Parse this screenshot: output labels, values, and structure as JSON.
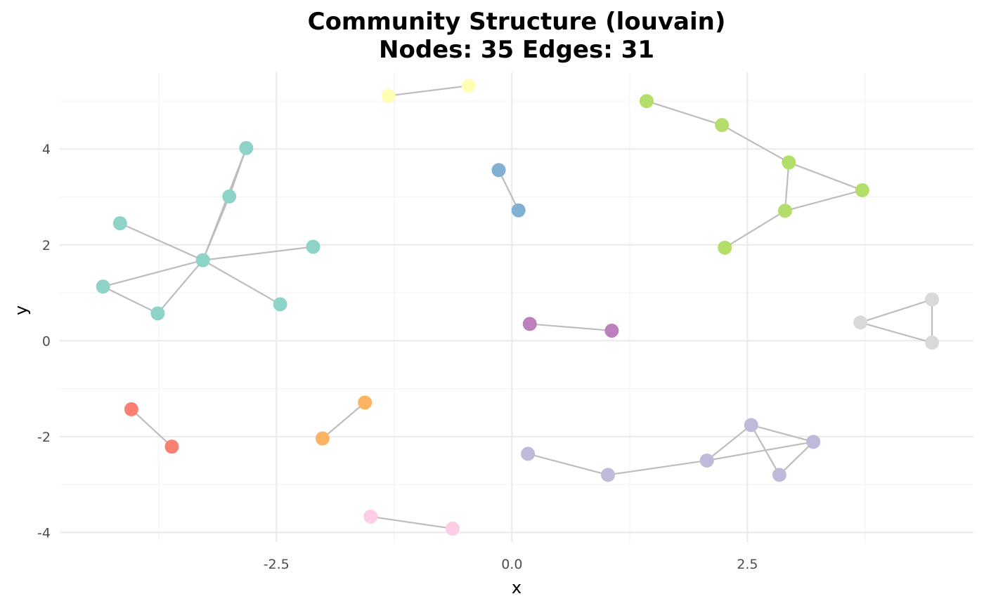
{
  "chart_data": {
    "type": "scatter",
    "title_line1": "Community Structure (louvain)",
    "title_line2": "Nodes: 35 Edges: 31",
    "xlabel": "x",
    "ylabel": "y",
    "xlim": [
      -4.8,
      4.9
    ],
    "ylim": [
      -4.2,
      5.6
    ],
    "x_ticks": [
      -2.5,
      0.0,
      2.5
    ],
    "x_tick_labels": [
      "-2.5",
      "0.0",
      "2.5"
    ],
    "y_ticks": [
      -4,
      -2,
      0,
      2,
      4
    ],
    "y_tick_labels": [
      "-4",
      "-2",
      "0",
      "2",
      "4"
    ],
    "grid": true,
    "legend": "none",
    "community_colors": [
      "#8dd3c7",
      "#ffffb3",
      "#80b1d3",
      "#b3de69",
      "#bc80bd",
      "#d9d9d9",
      "#fb8072",
      "#fdb462",
      "#bebada",
      "#fccde5"
    ],
    "nodes": [
      {
        "id": 1,
        "x": -3.28,
        "y": 1.68,
        "community": 0
      },
      {
        "id": 2,
        "x": -2.82,
        "y": 4.02,
        "community": 0
      },
      {
        "id": 3,
        "x": -3.0,
        "y": 3.01,
        "community": 0
      },
      {
        "id": 4,
        "x": -4.16,
        "y": 2.45,
        "community": 0
      },
      {
        "id": 5,
        "x": -2.11,
        "y": 1.96,
        "community": 0
      },
      {
        "id": 6,
        "x": -4.34,
        "y": 1.13,
        "community": 0
      },
      {
        "id": 7,
        "x": -3.76,
        "y": 0.57,
        "community": 0
      },
      {
        "id": 8,
        "x": -2.46,
        "y": 0.76,
        "community": 0
      },
      {
        "id": 9,
        "x": -1.31,
        "y": 5.11,
        "community": 1
      },
      {
        "id": 10,
        "x": -0.46,
        "y": 5.32,
        "community": 1
      },
      {
        "id": 11,
        "x": -0.14,
        "y": 3.56,
        "community": 2
      },
      {
        "id": 12,
        "x": 0.07,
        "y": 2.72,
        "community": 2
      },
      {
        "id": 13,
        "x": 1.43,
        "y": 5.0,
        "community": 3
      },
      {
        "id": 14,
        "x": 2.23,
        "y": 4.5,
        "community": 3
      },
      {
        "id": 15,
        "x": 2.94,
        "y": 3.72,
        "community": 3
      },
      {
        "id": 16,
        "x": 3.72,
        "y": 3.14,
        "community": 3
      },
      {
        "id": 17,
        "x": 2.9,
        "y": 2.71,
        "community": 3
      },
      {
        "id": 18,
        "x": 2.26,
        "y": 1.94,
        "community": 3
      },
      {
        "id": 19,
        "x": 0.19,
        "y": 0.35,
        "community": 4
      },
      {
        "id": 20,
        "x": 1.06,
        "y": 0.21,
        "community": 4
      },
      {
        "id": 21,
        "x": 3.7,
        "y": 0.38,
        "community": 5
      },
      {
        "id": 22,
        "x": 4.46,
        "y": 0.86,
        "community": 5
      },
      {
        "id": 23,
        "x": 4.46,
        "y": -0.04,
        "community": 5
      },
      {
        "id": 24,
        "x": -4.04,
        "y": -1.43,
        "community": 6
      },
      {
        "id": 25,
        "x": -3.61,
        "y": -2.21,
        "community": 6
      },
      {
        "id": 26,
        "x": -1.56,
        "y": -1.29,
        "community": 7
      },
      {
        "id": 27,
        "x": -2.01,
        "y": -2.04,
        "community": 7
      },
      {
        "id": 28,
        "x": 0.17,
        "y": -2.36,
        "community": 8
      },
      {
        "id": 29,
        "x": 1.02,
        "y": -2.8,
        "community": 8
      },
      {
        "id": 30,
        "x": 2.07,
        "y": -2.5,
        "community": 8
      },
      {
        "id": 31,
        "x": 2.54,
        "y": -1.76,
        "community": 8
      },
      {
        "id": 32,
        "x": 3.2,
        "y": -2.11,
        "community": 8
      },
      {
        "id": 33,
        "x": 2.84,
        "y": -2.8,
        "community": 8
      },
      {
        "id": 34,
        "x": -1.5,
        "y": -3.67,
        "community": 9
      },
      {
        "id": 35,
        "x": -0.63,
        "y": -3.92,
        "community": 9
      }
    ],
    "edges": [
      [
        1,
        2
      ],
      [
        1,
        3
      ],
      [
        1,
        4
      ],
      [
        1,
        5
      ],
      [
        1,
        6
      ],
      [
        1,
        7
      ],
      [
        1,
        8
      ],
      [
        6,
        7
      ],
      [
        2,
        3
      ],
      [
        9,
        10
      ],
      [
        11,
        12
      ],
      [
        13,
        14
      ],
      [
        14,
        15
      ],
      [
        15,
        16
      ],
      [
        15,
        17
      ],
      [
        16,
        17
      ],
      [
        17,
        18
      ],
      [
        19,
        20
      ],
      [
        21,
        22
      ],
      [
        21,
        23
      ],
      [
        22,
        23
      ],
      [
        24,
        25
      ],
      [
        26,
        27
      ],
      [
        28,
        29
      ],
      [
        29,
        30
      ],
      [
        30,
        31
      ],
      [
        30,
        32
      ],
      [
        31,
        32
      ],
      [
        31,
        33
      ],
      [
        32,
        33
      ],
      [
        34,
        35
      ]
    ]
  }
}
